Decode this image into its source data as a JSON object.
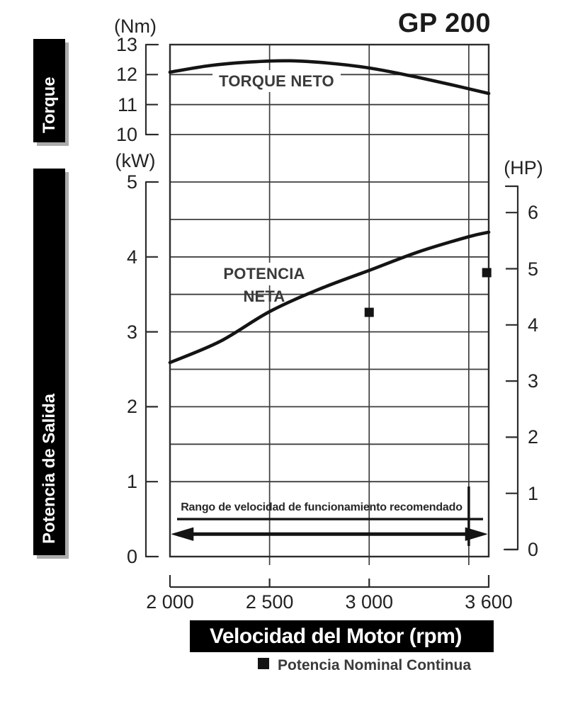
{
  "title": "GP 200",
  "side_labels": {
    "torque": "Torque",
    "power": "Potencia de Salida"
  },
  "axes": {
    "torque_unit": "(Nm)",
    "power_unit_left": "(kW)",
    "power_unit_right": "(HP)",
    "torque_ticks": [
      13,
      12,
      11,
      10
    ],
    "kw_ticks": [
      5,
      4,
      3,
      2,
      1,
      0
    ],
    "hp_ticks": [
      6,
      5,
      4,
      3,
      2,
      1,
      0
    ],
    "rpm_tick_labels": [
      "2 000",
      "2 500",
      "3 000",
      "3 600"
    ],
    "rpm_tick_values": [
      2000,
      2500,
      3000,
      3600
    ],
    "x_label": "Velocidad del Motor (rpm)"
  },
  "annotations": {
    "torque_curve_label": "TORQUE NETO",
    "power_curve_label": "POTENCIA NETA",
    "range_label": "Rango de velocidad de funcionamiento recomendado",
    "legend_label": "Potencia Nominal Continua"
  },
  "colors": {
    "ink": "#141414",
    "grid": "#3e3e3e",
    "border": "#2c2c2c",
    "banner_bg": "#000000",
    "banner_text": "#ffffff",
    "banner_shadow": "#ababab"
  },
  "chart_data": [
    {
      "type": "line",
      "title": "GP 200",
      "subtitle": "Torque chart (top panel)",
      "xlabel": "Velocidad del Motor (rpm)",
      "ylabel": "(Nm)",
      "xlim": [
        2000,
        3600
      ],
      "ylim": [
        10,
        13
      ],
      "grid": true,
      "x": [
        2000,
        2200,
        2400,
        2600,
        2800,
        3000,
        3200,
        3400,
        3600
      ],
      "series": [
        {
          "name": "TORQUE NETO",
          "values": [
            12.08,
            12.3,
            12.42,
            12.46,
            12.38,
            12.22,
            11.97,
            11.68,
            11.37
          ]
        }
      ]
    },
    {
      "type": "line",
      "subtitle": "Power chart (bottom panel)",
      "xlabel": "Velocidad del Motor (rpm)",
      "ylabel": "(kW)",
      "ylabel_right": "(HP)",
      "xlim": [
        2000,
        3600
      ],
      "ylim": [
        0,
        5
      ],
      "ylim_right": [
        0,
        6.3
      ],
      "grid": true,
      "grid_step_kw": 0.5,
      "x": [
        2000,
        2250,
        2500,
        2750,
        3000,
        3250,
        3500,
        3600
      ],
      "series": [
        {
          "name": "POTENCIA NETA",
          "values": [
            2.59,
            2.87,
            3.27,
            3.57,
            3.82,
            4.07,
            4.27,
            4.33
          ]
        }
      ],
      "markers": {
        "name": "Potencia Nominal Continua",
        "shape": "square",
        "points": [
          {
            "rpm": 3000,
            "kw": 3.26
          },
          {
            "rpm": 3590,
            "kw": 3.79
          }
        ]
      },
      "annotation_range": {
        "text": "Rango de velocidad de funcionamiento recomendado",
        "from_rpm": 2010,
        "to_rpm": 3590,
        "arrow_kw": 0.3,
        "underline_kw": 0.5,
        "end_mark_rpm": 3500
      }
    }
  ]
}
